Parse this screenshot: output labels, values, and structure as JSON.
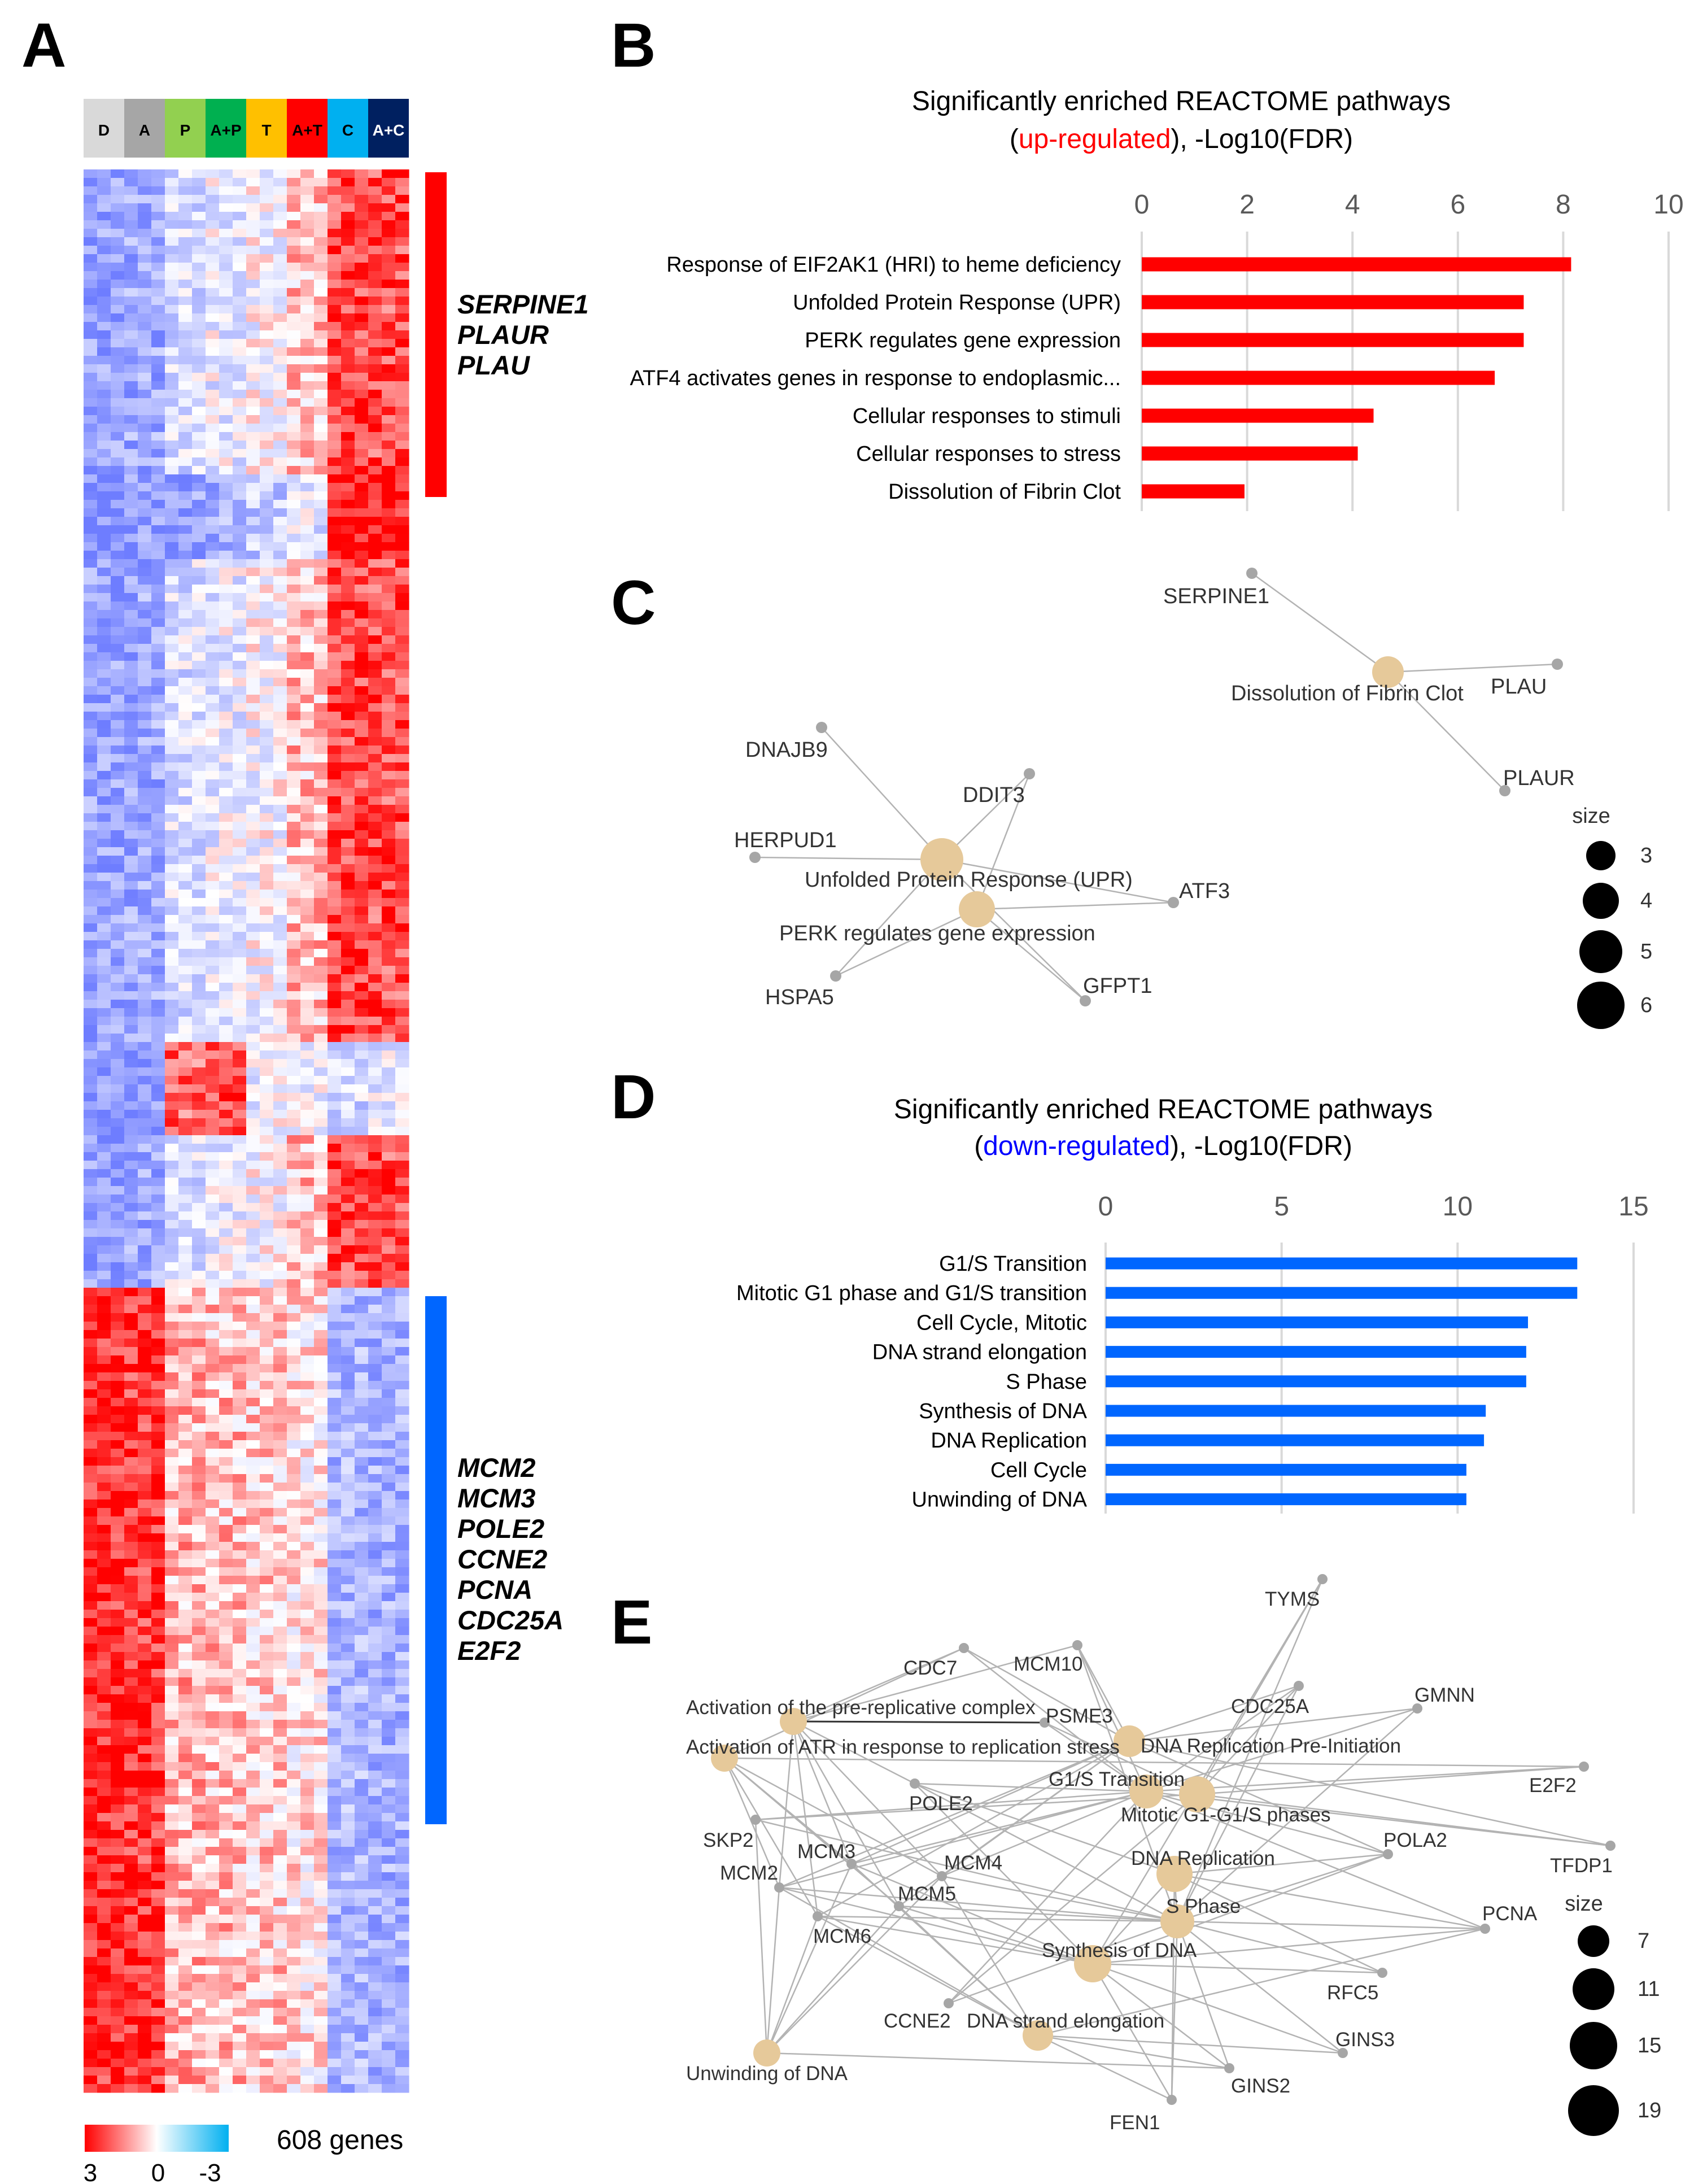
{
  "panels": {
    "a": "A",
    "b": "B",
    "c": "C",
    "d": "D",
    "e": "E"
  },
  "heatmap": {
    "groups": [
      {
        "label": "D",
        "color": "#d9d9d9",
        "text": "#000000"
      },
      {
        "label": "A",
        "color": "#a6a6a6",
        "text": "#000000"
      },
      {
        "label": "P",
        "color": "#92d050",
        "text": "#000000"
      },
      {
        "label": "A+P",
        "color": "#00b050",
        "text": "#000000"
      },
      {
        "label": "T",
        "color": "#ffc000",
        "text": "#000000"
      },
      {
        "label": "A+T",
        "color": "#ff0000",
        "text": "#000000"
      },
      {
        "label": "C",
        "color": "#00b0f0",
        "text": "#000000"
      },
      {
        "label": "A+C",
        "color": "#002060",
        "text": "#ffffff"
      }
    ],
    "gene_count_label": "608 genes",
    "scale_labels": [
      "3",
      "0",
      "-3"
    ],
    "up_cluster": {
      "color": "#ff0000",
      "genes": [
        "SERPINE1",
        "PLAUR",
        "PLAU"
      ]
    },
    "down_cluster": {
      "color": "#0066ff",
      "genes": [
        "MCM2",
        "MCM3",
        "POLE2",
        "CCNE2",
        "PCNA",
        "CDC25A",
        "E2F2"
      ]
    }
  },
  "chart_data": [
    {
      "type": "bar",
      "orientation": "horizontal",
      "title_line1": "Significantly enriched REACTOME pathways",
      "title_open": "(",
      "title_highlight": "up-regulated",
      "title_rest": "), -Log10(FDR)",
      "highlight_color": "#ff0000",
      "bar_color": "#ff0000",
      "xlim": [
        0,
        10
      ],
      "xticks": [
        "0",
        "2",
        "4",
        "6",
        "8",
        "10"
      ],
      "categories": [
        "Response of EIF2AK1 (HRI) to heme deficiency",
        "Unfolded Protein Response (UPR)",
        "PERK regulates gene expression",
        "ATF4 activates genes in response to endoplasmic...",
        "Cellular responses to stimuli",
        "Cellular responses to stress",
        "Dissolution of Fibrin Clot"
      ],
      "values": [
        8.15,
        7.25,
        7.25,
        6.7,
        4.4,
        4.1,
        1.95
      ]
    },
    {
      "type": "bar",
      "orientation": "horizontal",
      "title_line1": "Significantly enriched REACTOME pathways",
      "title_open": "(",
      "title_highlight": "down-regulated",
      "title_rest": "), -Log10(FDR)",
      "highlight_color": "#0000ff",
      "bar_color": "#0066ff",
      "xlim": [
        0,
        15
      ],
      "xticks": [
        "0",
        "5",
        "10",
        "15"
      ],
      "categories": [
        "G1/S Transition",
        "Mitotic G1 phase and G1/S transition",
        "Cell Cycle, Mitotic",
        "DNA strand elongation",
        "S Phase",
        "Synthesis of DNA",
        "DNA Replication",
        "Cell Cycle",
        "Unwinding of DNA"
      ],
      "values": [
        13.4,
        13.4,
        12.0,
        11.95,
        11.95,
        10.8,
        10.75,
        10.25,
        10.25
      ]
    }
  ],
  "network_c": {
    "size_title": "size",
    "size_labels": [
      "3",
      "4",
      "5",
      "6"
    ],
    "nodes": [
      {
        "id": "serpine1",
        "label": "SERPINE1",
        "type": "gene"
      },
      {
        "id": "fibrin",
        "label": "Dissolution of Fibrin Clot",
        "type": "pathway",
        "size": 3
      },
      {
        "id": "plau",
        "label": "PLAU",
        "type": "gene"
      },
      {
        "id": "plaur",
        "label": "PLAUR",
        "type": "gene"
      },
      {
        "id": "dnajb9",
        "label": "DNAJB9",
        "type": "gene"
      },
      {
        "id": "ddit3",
        "label": "DDIT3",
        "type": "gene"
      },
      {
        "id": "herpud1",
        "label": "HERPUD1",
        "type": "gene"
      },
      {
        "id": "upr",
        "label": "Unfolded Protein Response (UPR)",
        "type": "pathway",
        "size": 6
      },
      {
        "id": "atf3",
        "label": "ATF3",
        "type": "gene"
      },
      {
        "id": "perk",
        "label": "PERK regulates gene expression",
        "type": "pathway",
        "size": 5
      },
      {
        "id": "hspa5",
        "label": "HSPA5",
        "type": "gene"
      },
      {
        "id": "gfpt1",
        "label": "GFPT1",
        "type": "gene"
      }
    ]
  },
  "network_e": {
    "size_title": "size",
    "size_labels": [
      "7",
      "11",
      "15",
      "19"
    ],
    "nodes": [
      {
        "id": "tyms",
        "label": "TYMS"
      },
      {
        "id": "cdc7",
        "label": "CDC7"
      },
      {
        "id": "mcm10",
        "label": "MCM10"
      },
      {
        "id": "gmnn",
        "label": "GMNN"
      },
      {
        "id": "prerep",
        "label": "Activation of the pre-replicative complex"
      },
      {
        "id": "psme3",
        "label": "PSME3"
      },
      {
        "id": "cdc25a",
        "label": "CDC25A"
      },
      {
        "id": "atr",
        "label": "Activation of ATR in response to replication stress"
      },
      {
        "id": "dnarepi",
        "label": "DNA Replication Pre-Initiation"
      },
      {
        "id": "e2f2",
        "label": "E2F2"
      },
      {
        "id": "g1s",
        "label": "G1/S Transition"
      },
      {
        "id": "pole2",
        "label": "POLE2"
      },
      {
        "id": "mitg1",
        "label": "Mitotic G1-G1/S phases"
      },
      {
        "id": "skp2",
        "label": "SKP2"
      },
      {
        "id": "pola2",
        "label": "POLA2"
      },
      {
        "id": "tfdp1",
        "label": "TFDP1"
      },
      {
        "id": "mcm3",
        "label": "MCM3"
      },
      {
        "id": "mcm4",
        "label": "MCM4"
      },
      {
        "id": "dnarep",
        "label": "DNA Replication"
      },
      {
        "id": "mcm2",
        "label": "MCM2"
      },
      {
        "id": "mcm5",
        "label": "MCM5"
      },
      {
        "id": "sphase",
        "label": "S Phase"
      },
      {
        "id": "pcna",
        "label": "PCNA"
      },
      {
        "id": "mcm6",
        "label": "MCM6"
      },
      {
        "id": "syndna",
        "label": "Synthesis of DNA"
      },
      {
        "id": "rfc5",
        "label": "RFC5"
      },
      {
        "id": "ccne2",
        "label": "CCNE2"
      },
      {
        "id": "dnaelong",
        "label": "DNA strand elongation"
      },
      {
        "id": "gins3",
        "label": "GINS3"
      },
      {
        "id": "unwind",
        "label": "Unwinding of DNA"
      },
      {
        "id": "gins2",
        "label": "GINS2"
      },
      {
        "id": "fen1",
        "label": "FEN1"
      }
    ]
  }
}
